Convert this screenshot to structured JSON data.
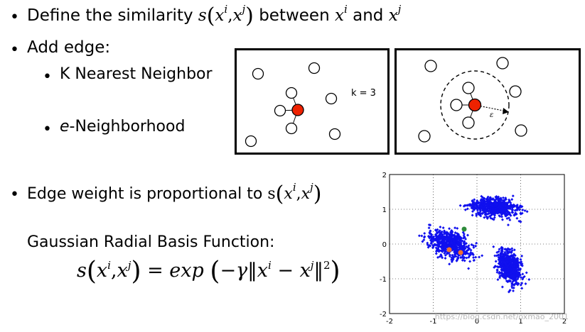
{
  "bullets": {
    "b1_prefix": "Define the similarity",
    "b1_mid": "between",
    "b1_and": "and",
    "b2": "Add edge:",
    "b2_sub1": "K Nearest Neighbor",
    "b2_sub2_e": "e",
    "b2_sub2_rest": "-Neighborhood",
    "b3": "Edge weight is proportional  to",
    "rbf_label": "Gaussian Radial Basis Function:"
  },
  "math": {
    "s": "s",
    "x": "x",
    "i": "i",
    "j": "j",
    "comma": ",",
    "equals": "=",
    "exp": "exp",
    "neg_gamma": "−γ",
    "minus": "−",
    "norm_sq": "2"
  },
  "knn_label": "k = 3",
  "eps_label": "ε",
  "scatter": {
    "ticks_x": [
      "-2",
      "-1",
      "0",
      "1",
      "2"
    ],
    "ticks_y": [
      "2",
      "1",
      "0",
      "-1",
      "-2"
    ],
    "watermark": "https://blog.csdn.net/oxmao_2001",
    "colors": {
      "points": "#1010ee",
      "orange": "#f07030",
      "green": "#2e8b3a"
    }
  }
}
